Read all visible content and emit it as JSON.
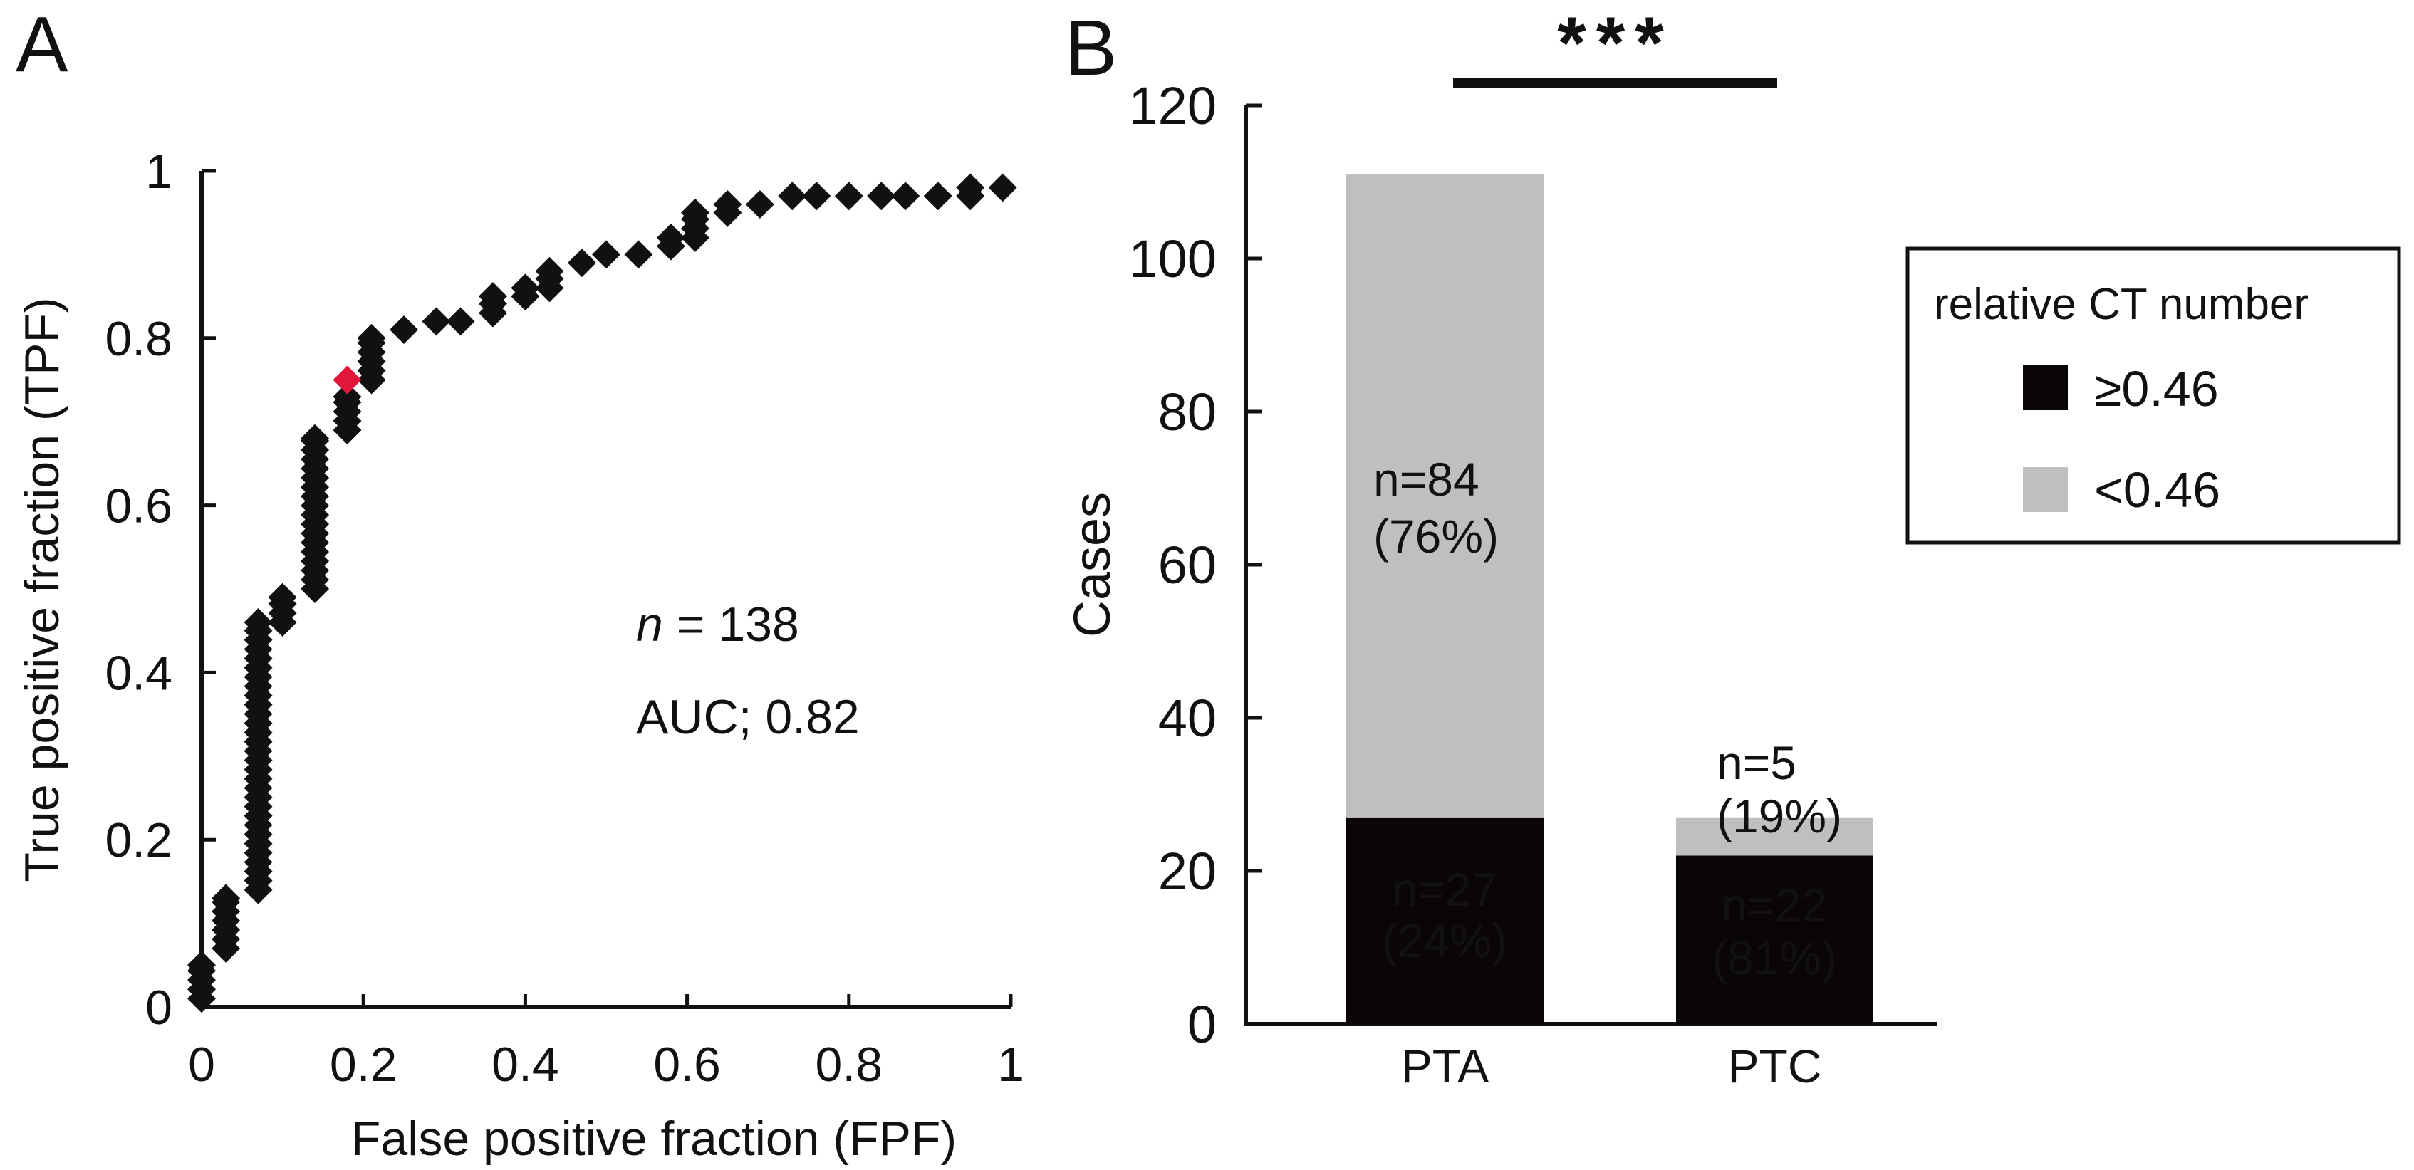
{
  "chart_data": [
    {
      "panel_label": "A",
      "type": "scatter",
      "title": "",
      "xlabel": "False positive fraction (FPF)",
      "ylabel": "True positive fraction (TPF)",
      "xlim": [
        0,
        1
      ],
      "ylim": [
        0,
        1
      ],
      "x_ticks": [
        0,
        0.2,
        0.4,
        0.6,
        0.8,
        1
      ],
      "y_ticks": [
        0,
        0.2,
        0.4,
        0.6,
        0.8,
        1
      ],
      "x_tick_labels": [
        "0",
        "0.2",
        "0.4",
        "0.6",
        "0.8",
        "1"
      ],
      "y_tick_labels": [
        "0",
        "0.2",
        "0.4",
        "0.6",
        "0.8",
        "1"
      ],
      "marker_color": "#111111",
      "highlight_color": "#e0173b",
      "roc_curve": [
        [
          0,
          0.01
        ],
        [
          0,
          0.05
        ],
        [
          0.03,
          0.07
        ],
        [
          0.03,
          0.13
        ],
        [
          0.07,
          0.14
        ],
        [
          0.07,
          0.46
        ],
        [
          0.1,
          0.46
        ],
        [
          0.1,
          0.49
        ],
        [
          0.14,
          0.5
        ],
        [
          0.14,
          0.68
        ],
        [
          0.18,
          0.69
        ],
        [
          0.18,
          0.73
        ],
        [
          0.21,
          0.75
        ],
        [
          0.21,
          0.8
        ],
        [
          0.25,
          0.81
        ],
        [
          0.29,
          0.82
        ],
        [
          0.32,
          0.82
        ],
        [
          0.36,
          0.83
        ],
        [
          0.36,
          0.85
        ],
        [
          0.4,
          0.85
        ],
        [
          0.4,
          0.86
        ],
        [
          0.43,
          0.86
        ],
        [
          0.43,
          0.88
        ],
        [
          0.47,
          0.89
        ],
        [
          0.5,
          0.9
        ],
        [
          0.54,
          0.9
        ],
        [
          0.58,
          0.91
        ],
        [
          0.58,
          0.92
        ],
        [
          0.61,
          0.92
        ],
        [
          0.61,
          0.95
        ],
        [
          0.65,
          0.95
        ],
        [
          0.65,
          0.96
        ],
        [
          0.69,
          0.96
        ],
        [
          0.73,
          0.97
        ],
        [
          0.76,
          0.97
        ],
        [
          0.8,
          0.97
        ],
        [
          0.84,
          0.97
        ],
        [
          0.87,
          0.97
        ],
        [
          0.91,
          0.97
        ],
        [
          0.95,
          0.97
        ],
        [
          0.95,
          0.98
        ],
        [
          0.99,
          0.98
        ]
      ],
      "highlight_point": [
        0.18,
        0.75
      ],
      "annotations": [
        {
          "italic": "n",
          "text": " = 138"
        },
        {
          "text": "AUC; 0.82"
        }
      ]
    },
    {
      "panel_label": "B",
      "type": "bar",
      "stacked": true,
      "title": "",
      "xlabel": "",
      "ylabel": "Cases",
      "ylim": [
        0,
        120
      ],
      "y_ticks": [
        0,
        20,
        40,
        60,
        80,
        100,
        120
      ],
      "y_tick_labels": [
        "0",
        "20",
        "40",
        "60",
        "80",
        "100",
        "120"
      ],
      "categories": [
        "PTA",
        "PTC"
      ],
      "series": [
        {
          "name": "≥0.46",
          "color": "#0a0606",
          "values": [
            27,
            22
          ],
          "labels": [
            [
              "n=27",
              "(24%)"
            ],
            [
              "n=22",
              "(81%)"
            ]
          ]
        },
        {
          "name": "<0.46",
          "color": "#bfbfbf",
          "values": [
            84,
            5
          ],
          "labels": [
            [
              "n=84",
              "(76%)"
            ],
            [
              "n=5",
              "(19%)"
            ]
          ]
        }
      ],
      "significance": {
        "text": "***",
        "between": [
          "PTA",
          "PTC"
        ]
      },
      "legend": {
        "title": "relative CT number",
        "entries": [
          "≥0.46",
          "<0.46"
        ],
        "placement": "right"
      }
    }
  ]
}
